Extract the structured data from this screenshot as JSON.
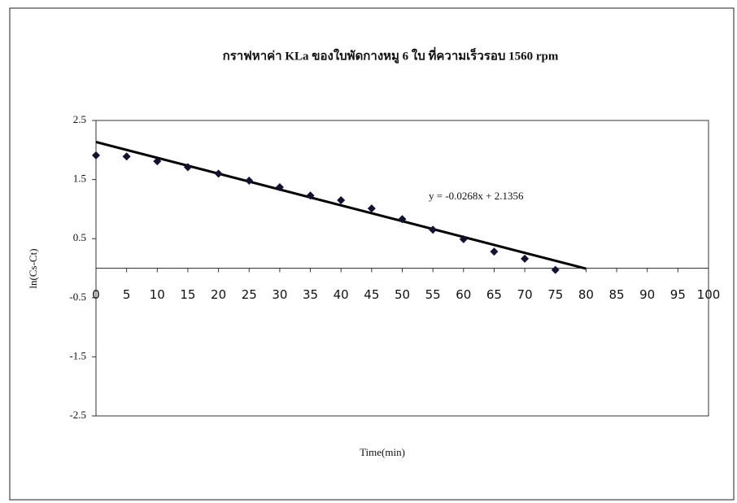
{
  "chart_data": {
    "type": "scatter",
    "title": "กราฟหาค่า KLa ของใบพัดกางหมู 6 ใบ ที่ความเร็วรอบ 1560 rpm",
    "x_label": "Time(min)",
    "y_label": "ln(Cs-Ct)",
    "x": [
      0,
      5,
      10,
      15,
      20,
      25,
      30,
      35,
      40,
      45,
      50,
      55,
      60,
      65,
      70,
      75
    ],
    "series": [
      {
        "name": "ln(Cs-Ct)",
        "color": "#111133",
        "values": [
          1.91,
          1.89,
          1.81,
          1.71,
          1.6,
          1.48,
          1.37,
          1.23,
          1.15,
          1.01,
          0.83,
          0.65,
          0.49,
          0.28,
          0.16,
          -0.03
        ]
      }
    ],
    "trendline": {
      "label": "y = -0.0268x + 2.1356",
      "slope": -0.0268,
      "intercept": 2.1356,
      "x": [
        0,
        80
      ],
      "color": "#000000"
    },
    "xlim": [
      0,
      100
    ],
    "xticks": [
      0,
      5,
      10,
      15,
      20,
      25,
      30,
      35,
      40,
      45,
      50,
      55,
      60,
      65,
      70,
      75,
      80,
      85,
      90,
      95,
      100
    ],
    "ylim": [
      -2.5,
      2.5
    ],
    "yticks": [
      -2.5,
      -1.5,
      -0.5,
      0.5,
      1.5,
      2.5
    ],
    "grid": false,
    "legend": false
  }
}
